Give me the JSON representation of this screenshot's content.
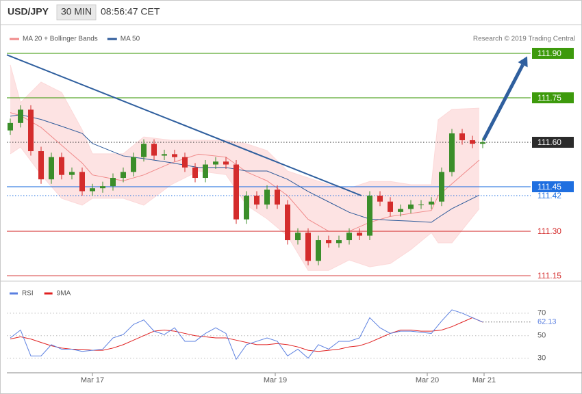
{
  "header": {
    "symbol": "USD/JPY",
    "interval": "30 MIN",
    "time": "08:56:47 CET",
    "copyright": "Research © 2019 Trading Central"
  },
  "chart_data": [
    {
      "type": "candlestick",
      "xlim": [
        0,
        153
      ],
      "ylim": [
        111.134,
        111.923
      ],
      "up_color": "#3b8e2a",
      "down_color": "#d42c2c",
      "x": [
        1,
        4,
        7,
        10,
        13,
        16,
        19,
        22,
        25,
        28,
        31,
        34,
        37,
        40,
        43,
        46,
        49,
        52,
        55,
        58,
        61,
        64,
        67,
        70,
        73,
        76,
        79,
        82,
        85,
        88,
        91,
        94,
        97,
        100,
        103,
        106,
        109,
        112,
        115,
        118,
        121,
        124,
        127,
        130,
        133,
        136,
        139
      ],
      "open": [
        111.64,
        111.665,
        111.71,
        111.57,
        111.475,
        111.55,
        111.49,
        111.5,
        111.435,
        111.445,
        111.452,
        111.48,
        111.5,
        111.55,
        111.595,
        111.555,
        111.56,
        111.55,
        111.515,
        111.48,
        111.525,
        111.535,
        111.525,
        111.34,
        111.42,
        111.39,
        111.44,
        111.39,
        111.27,
        111.295,
        111.2,
        111.27,
        111.26,
        111.27,
        111.295,
        111.285,
        111.42,
        111.4,
        111.365,
        111.375,
        111.39,
        111.39,
        111.4,
        111.5,
        111.63,
        111.607,
        111.595
      ],
      "high": [
        111.68,
        111.725,
        111.725,
        111.585,
        111.565,
        111.565,
        111.515,
        111.515,
        111.46,
        111.467,
        111.495,
        111.515,
        111.565,
        111.61,
        111.61,
        111.575,
        111.575,
        111.565,
        111.53,
        111.54,
        111.55,
        111.55,
        111.54,
        111.435,
        111.435,
        111.455,
        111.455,
        111.405,
        111.31,
        111.31,
        111.285,
        111.285,
        111.285,
        111.31,
        111.31,
        111.435,
        111.435,
        111.415,
        111.39,
        111.405,
        111.405,
        111.415,
        111.515,
        111.645,
        111.645,
        111.622,
        111.615
      ],
      "low": [
        111.625,
        111.65,
        111.555,
        111.46,
        111.46,
        111.475,
        111.475,
        111.42,
        111.42,
        111.43,
        111.437,
        111.465,
        111.485,
        111.535,
        111.54,
        111.54,
        111.535,
        111.5,
        111.465,
        111.465,
        111.51,
        111.51,
        111.325,
        111.325,
        111.375,
        111.375,
        111.375,
        111.255,
        111.255,
        111.185,
        111.185,
        111.245,
        111.245,
        111.255,
        111.27,
        111.27,
        111.385,
        111.35,
        111.35,
        111.36,
        111.375,
        111.375,
        111.385,
        111.485,
        111.592,
        111.58,
        111.58
      ],
      "close": [
        111.665,
        111.71,
        111.57,
        111.475,
        111.55,
        111.49,
        111.5,
        111.435,
        111.445,
        111.452,
        111.48,
        111.5,
        111.55,
        111.595,
        111.555,
        111.56,
        111.55,
        111.515,
        111.48,
        111.525,
        111.535,
        111.525,
        111.34,
        111.42,
        111.39,
        111.44,
        111.39,
        111.27,
        111.295,
        111.2,
        111.27,
        111.26,
        111.27,
        111.295,
        111.285,
        111.42,
        111.4,
        111.365,
        111.375,
        111.39,
        111.39,
        111.4,
        111.5,
        111.63,
        111.607,
        111.595,
        111.6
      ],
      "series": [
        {
          "name": "MA 20 + Bollinger Bands",
          "color": "#f08a8a",
          "band_color": "#fcd9d9",
          "x": [
            1,
            4,
            10,
            16,
            22,
            25,
            34,
            40,
            48,
            56,
            64,
            70,
            76,
            82,
            88,
            94,
            100,
            106,
            112,
            118,
            124,
            126,
            130,
            138
          ],
          "values": [
            111.7,
            111.69,
            111.65,
            111.59,
            111.53,
            111.49,
            111.47,
            111.49,
            111.53,
            111.56,
            111.55,
            111.5,
            111.47,
            111.42,
            111.34,
            111.3,
            111.3,
            111.33,
            111.35,
            111.36,
            111.37,
            111.42,
            111.46,
            111.54
          ],
          "upper": [
            111.861,
            111.734,
            111.803,
            111.768,
            111.642,
            111.561,
            111.561,
            111.618,
            111.607,
            111.607,
            111.607,
            111.595,
            111.572,
            111.503,
            111.48,
            111.457,
            111.445,
            111.468,
            111.468,
            111.457,
            111.457,
            111.676,
            111.711,
            111.715
          ],
          "lower": [
            111.561,
            111.584,
            111.491,
            111.411,
            111.388,
            111.411,
            111.411,
            111.388,
            111.457,
            111.503,
            111.491,
            111.388,
            111.342,
            111.284,
            111.168,
            111.168,
            111.203,
            111.18,
            111.191,
            111.238,
            111.295,
            111.261,
            111.261,
            111.376
          ]
        },
        {
          "name": "MA 50",
          "color": "#2d5a9a",
          "x": [
            1,
            4,
            10,
            16,
            22,
            25,
            34,
            40,
            48,
            56,
            64,
            70,
            76,
            82,
            88,
            94,
            100,
            106,
            112,
            118,
            124,
            126,
            130,
            138
          ],
          "values": [
            111.688,
            111.693,
            111.677,
            111.654,
            111.63,
            111.596,
            111.554,
            111.545,
            111.531,
            111.515,
            111.515,
            111.503,
            111.503,
            111.475,
            111.434,
            111.399,
            111.364,
            111.341,
            111.337,
            111.334,
            111.33,
            111.346,
            111.376,
            111.422
          ]
        }
      ],
      "trend_line": {
        "x": [
          0,
          103.6
        ],
        "y": [
          111.895,
          111.42
        ],
        "color": "#2f5f9e"
      },
      "arrow": {
        "x": [
          139.2,
          152
        ],
        "y": [
          111.607,
          111.89
        ],
        "color": "#2f5f9e"
      },
      "levels": [
        {
          "value": 111.9,
          "label": "111.90",
          "color": "#3d9a0c",
          "line": "solid",
          "box": true
        },
        {
          "value": 111.75,
          "label": "111.75",
          "color": "#3d9a0c",
          "line": "solid",
          "box": true
        },
        {
          "value": 111.6,
          "label": "111.60",
          "color": "#2b2b2b",
          "line": "dotted",
          "box": true
        },
        {
          "value": 111.45,
          "label": "111.45",
          "color": "#1f6fe0",
          "line": "solid",
          "box": true
        },
        {
          "value": 111.42,
          "label": "111.42",
          "color": "#1f6fe0",
          "line": "dotted",
          "box": false
        },
        {
          "value": 111.3,
          "label": "111.30",
          "color": "#d42c2c",
          "line": "solid",
          "box": false
        },
        {
          "value": 111.15,
          "label": "111.15",
          "color": "#d42c2c",
          "line": "solid",
          "box": false
        }
      ]
    },
    {
      "type": "line",
      "xlim": [
        0,
        153
      ],
      "ylim": [
        17,
        93
      ],
      "yticks": [
        30,
        50,
        70
      ],
      "xticks": [
        {
          "value": 25,
          "label": "Mar 17"
        },
        {
          "value": 78.4,
          "label": "Mar 19"
        },
        {
          "value": 122.8,
          "label": "Mar 20"
        },
        {
          "value": 139.4,
          "label": "Mar 21"
        }
      ],
      "x": [
        1,
        4,
        7,
        10,
        13,
        16,
        19,
        22,
        25,
        28,
        31,
        34,
        37,
        40,
        43,
        46,
        49,
        52,
        55,
        58,
        61,
        64,
        67,
        70,
        73,
        76,
        79,
        82,
        85,
        88,
        91,
        94,
        97,
        100,
        103,
        106,
        109,
        112,
        115,
        118,
        121,
        124,
        127,
        130,
        133,
        136,
        139
      ],
      "series": [
        {
          "name": "RSI",
          "color": "#5a7fe0",
          "values": [
            48,
            55,
            32,
            32,
            42,
            38,
            38,
            36,
            37,
            38,
            48,
            51,
            60,
            64,
            54,
            51,
            57,
            45,
            45,
            52,
            57,
            52,
            29,
            42,
            45,
            48,
            45,
            32,
            38,
            30,
            42,
            38,
            45,
            45,
            48,
            66,
            57,
            52,
            54,
            54,
            53,
            52,
            63,
            73,
            70,
            66,
            62.13
          ]
        },
        {
          "name": "9MA",
          "color": "#e02020",
          "values": [
            47,
            49,
            47,
            44,
            41,
            39,
            38,
            38,
            37,
            37,
            39,
            42,
            46,
            50,
            54,
            55,
            54,
            52,
            50,
            49,
            48,
            48,
            46,
            44,
            42,
            42,
            43,
            42,
            40,
            37,
            36,
            37,
            38,
            40,
            41,
            44,
            48,
            52,
            55,
            55,
            54,
            54,
            55,
            58,
            62,
            66,
            62
          ]
        }
      ],
      "last_value": 62.13,
      "last_color": "#5a7fe0"
    }
  ]
}
